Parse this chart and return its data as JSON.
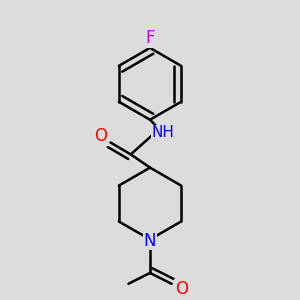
{
  "background_color": "#dcdcdc",
  "line_color": "#000000",
  "bond_width": 1.8,
  "font_size_labels": 11,
  "atom_colors": {
    "O": "#ff0000",
    "N": "#0000ff",
    "F": "#cc00cc",
    "C": "#000000"
  }
}
